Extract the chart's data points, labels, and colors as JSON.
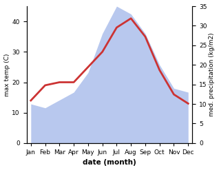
{
  "months": [
    "Jan",
    "Feb",
    "Mar",
    "Apr",
    "May",
    "Jun",
    "Jul",
    "Aug",
    "Sep",
    "Oct",
    "Nov",
    "Dec"
  ],
  "temperature": [
    14,
    19,
    20,
    20,
    25,
    30,
    38,
    41,
    35,
    24,
    16,
    13
  ],
  "precipitation": [
    10,
    9,
    11,
    13,
    18,
    28,
    35,
    33,
    28,
    20,
    14,
    13
  ],
  "temp_color": "#cc3333",
  "precip_color": "#b8c8ee",
  "xlabel": "date (month)",
  "ylabel_left": "max temp (C)",
  "ylabel_right": "med. precipitation (kg/m2)",
  "ylim_left": [
    0,
    45
  ],
  "ylim_right": [
    0,
    35
  ],
  "yticks_left": [
    0,
    10,
    20,
    30,
    40
  ],
  "yticks_right": [
    0,
    5,
    10,
    15,
    20,
    25,
    30,
    35
  ],
  "background_color": "#ffffff",
  "temp_linewidth": 2.0
}
